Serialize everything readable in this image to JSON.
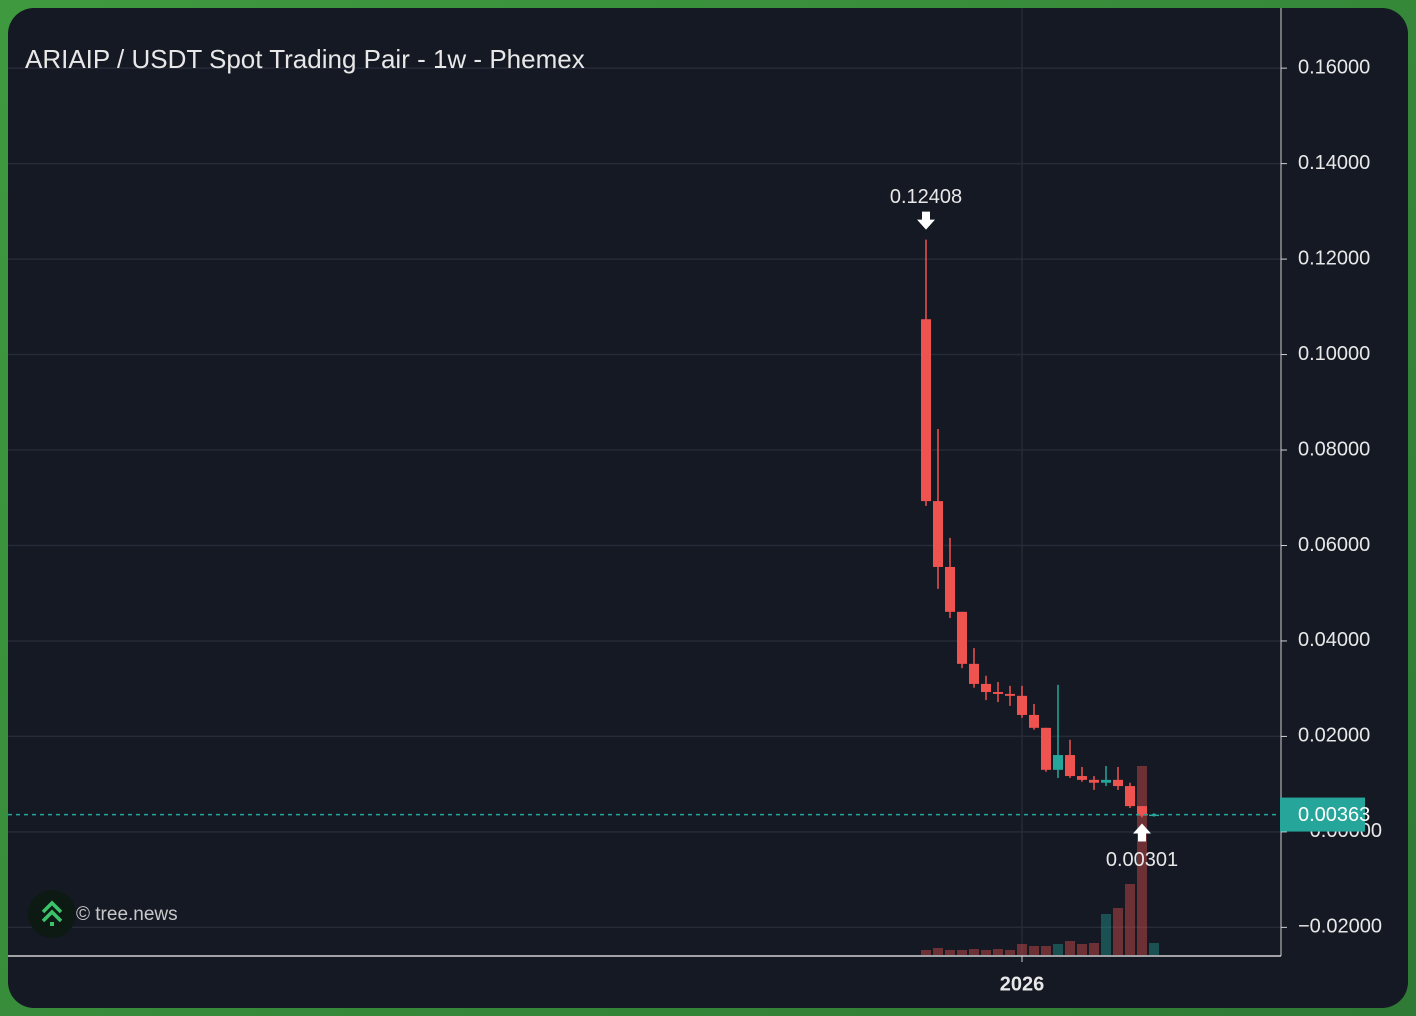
{
  "chart_data": {
    "type": "candlestick",
    "title": "ARIAIP / USDT Spot Trading Pair - 1w - Phemex",
    "watermark": "© tree.news",
    "categories": [
      null,
      null,
      null,
      null,
      null,
      null,
      null,
      null,
      "2026",
      null,
      null,
      null,
      null,
      null,
      null,
      null,
      null,
      null,
      null,
      null
    ],
    "open": [
      0.1074,
      0.0693,
      0.0555,
      0.0461,
      0.0352,
      0.031,
      0.0293,
      0.0289,
      0.0285,
      0.0245,
      0.0218,
      0.013,
      0.0161,
      0.0117,
      0.0109,
      0.0103,
      0.0109,
      0.0096,
      0.0054,
      0.0034
    ],
    "high": [
      0.12408,
      0.0844,
      0.0616,
      0.0461,
      0.0385,
      0.0327,
      0.0314,
      0.0306,
      0.0306,
      0.0268,
      0.0218,
      0.0308,
      0.0193,
      0.0136,
      0.0117,
      0.0138,
      0.0136,
      0.0103,
      0.0054,
      0.0039
    ],
    "low": [
      0.0683,
      0.0509,
      0.0448,
      0.0343,
      0.0302,
      0.0276,
      0.0272,
      0.0264,
      0.0239,
      0.0214,
      0.0126,
      0.0113,
      0.0113,
      0.0105,
      0.0088,
      0.0096,
      0.0088,
      0.005,
      0.00301,
      0.0032
    ],
    "close": [
      0.0693,
      0.0555,
      0.0461,
      0.0352,
      0.031,
      0.0293,
      0.0289,
      0.0285,
      0.0245,
      0.0218,
      0.013,
      0.0161,
      0.0117,
      0.0109,
      0.0103,
      0.0109,
      0.0096,
      0.0054,
      0.0034,
      0.00363
    ],
    "volume": [
      5,
      7,
      5,
      5,
      6,
      5,
      6,
      5,
      11,
      9,
      9,
      11,
      14,
      11,
      12,
      41,
      47,
      71,
      189,
      12
    ],
    "up_color": "#26a69a",
    "down_color": "#ef5350",
    "annotations": [
      0.12408,
      0.00301
    ],
    "last_price": 0.00363,
    "ylim": [
      -0.026,
      0.1726
    ],
    "yticks": [
      {
        "value": -0.02,
        "label": "−0.02000"
      },
      {
        "value": 0,
        "label": "−0.00000"
      },
      {
        "value": 0.02,
        "label": "0.02000"
      },
      {
        "value": 0.04,
        "label": "0.04000"
      },
      {
        "value": 0.06,
        "label": "0.06000"
      },
      {
        "value": 0.08,
        "label": "0.08000"
      },
      {
        "value": 0.1,
        "label": "0.10000"
      },
      {
        "value": 0.12,
        "label": "0.12000"
      },
      {
        "value": 0.14,
        "label": "0.14000"
      },
      {
        "value": 0.16,
        "label": "0.16000"
      }
    ],
    "grid": true
  }
}
